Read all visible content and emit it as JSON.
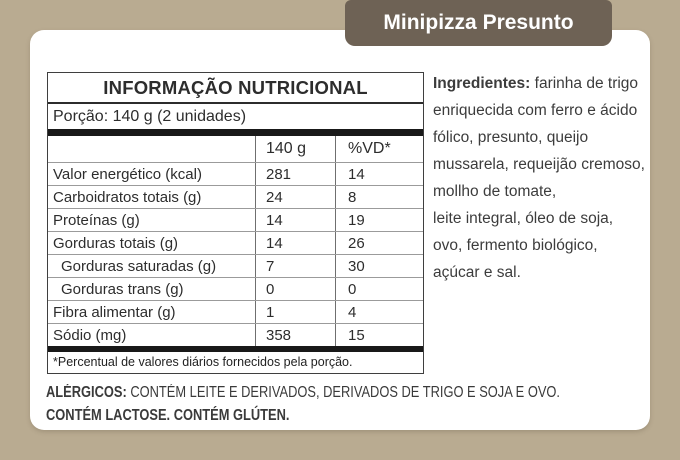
{
  "page": {
    "background_color": "#b9ab91",
    "card_color": "#ffffff",
    "badge_color": "#6e6255"
  },
  "header": {
    "title": "Minipizza Presunto"
  },
  "nutrition_table": {
    "title": "INFORMAÇÃO NUTRICIONAL",
    "portion": "Porção: 140 g (2 unidades)",
    "columns": [
      "",
      "140 g",
      "%VD*"
    ],
    "rows": [
      {
        "label": "Valor energético (kcal)",
        "amount": "281",
        "vd": "14",
        "indent": false
      },
      {
        "label": "Carboidratos totais (g)",
        "amount": "24",
        "vd": "8",
        "indent": false
      },
      {
        "label": "Proteínas (g)",
        "amount": "14",
        "vd": "19",
        "indent": false
      },
      {
        "label": "Gorduras totais (g)",
        "amount": "14",
        "vd": "26",
        "indent": false
      },
      {
        "label": "Gorduras saturadas (g)",
        "amount": "7",
        "vd": "30",
        "indent": true
      },
      {
        "label": "Gorduras trans (g)",
        "amount": "0",
        "vd": "0",
        "indent": true
      },
      {
        "label": "Fibra alimentar (g)",
        "amount": "1",
        "vd": "4",
        "indent": false
      },
      {
        "label": "Sódio (mg)",
        "amount": "358",
        "vd": "15",
        "indent": false
      }
    ],
    "footnote": "*Percentual de valores diários fornecidos pela porção."
  },
  "ingredients": {
    "label": "Ingredientes:",
    "lines": [
      "farinha de trigo",
      "enriquecida com ferro e ácido",
      "fólico, presunto, queijo",
      "mussarela, requeijão cremoso,",
      "mollho de tomate,",
      "leite integral, óleo de soja,",
      "ovo, fermento biológico,",
      "açúcar e sal."
    ]
  },
  "allergens": {
    "label": "ALÉRGICOS:",
    "line1": "CONTÉM LEITE E DERIVADOS, DERIVADOS DE TRIGO E SOJA E OVO.",
    "line2": "CONTÉM LACTOSE. CONTÉM GLÚTEN."
  }
}
